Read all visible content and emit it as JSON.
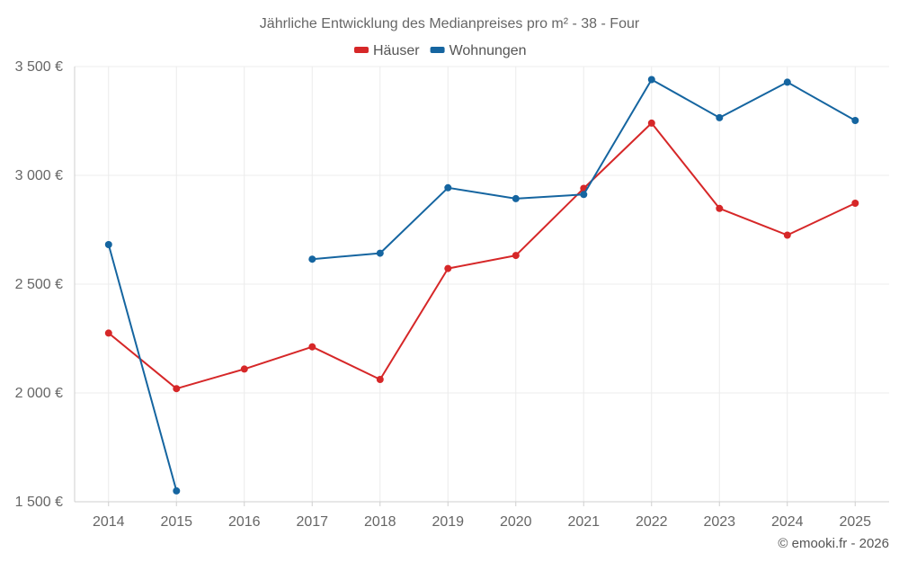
{
  "chart_data": {
    "type": "line",
    "title": "Jährliche Entwicklung des Medianpreises pro m² - 38 - Four",
    "categories": [
      "2014",
      "2015",
      "2016",
      "2017",
      "2018",
      "2019",
      "2020",
      "2021",
      "2022",
      "2023",
      "2024",
      "2025"
    ],
    "ylim": [
      1500,
      3500
    ],
    "yticks": [
      1500,
      2000,
      2500,
      3000,
      3500
    ],
    "ytick_labels": [
      "1 500 €",
      "2 000 €",
      "2 500 €",
      "3 000 €",
      "3 500 €"
    ],
    "grid": true,
    "legend_position": "top-center",
    "series": [
      {
        "name": "Häuser",
        "color": "#d62728",
        "values": [
          2275,
          2020,
          2110,
          2212,
          2062,
          2572,
          2632,
          2940,
          3240,
          2848,
          2725,
          2872
        ]
      },
      {
        "name": "Wohnungen",
        "color": "#1565a0",
        "values": [
          2682,
          1550,
          null,
          2615,
          2642,
          2943,
          2893,
          2912,
          3440,
          3265,
          3428,
          3252
        ]
      }
    ]
  },
  "footer": {
    "credit": "© emooki.fr - 2026"
  }
}
